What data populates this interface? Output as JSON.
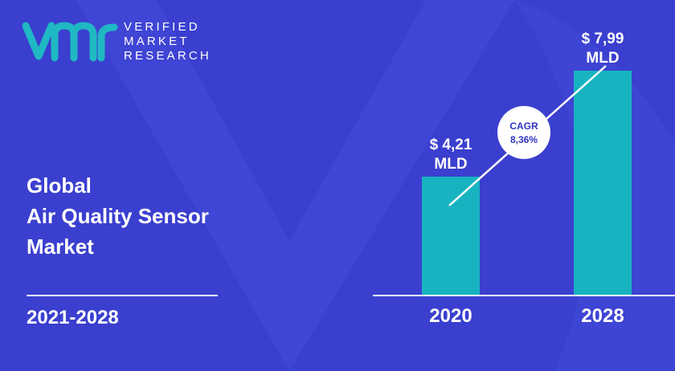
{
  "brand": {
    "lines": [
      "VERIFIED",
      "MARKET",
      "RESEARCH"
    ],
    "colors": {
      "teal": "#1fb8c3",
      "background": "#3a3fcf",
      "shape": "#4149d9"
    }
  },
  "title_lines": [
    "Global",
    "Air Quality Sensor",
    "Market"
  ],
  "period": "2021-2028",
  "chart_data": {
    "type": "bar",
    "categories": [
      "2020",
      "2028"
    ],
    "values": [
      4.21,
      7.99
    ],
    "value_labels": [
      [
        "$ 4,21",
        "MLD"
      ],
      [
        "$ 7,99",
        "MLD"
      ]
    ],
    "unit": "MLD",
    "cagr": {
      "label": "CAGR",
      "value": "8,36%"
    },
    "ylim": [
      0,
      8.5
    ],
    "bar_color": "#18b3c0",
    "grid": false,
    "legend": "none"
  }
}
